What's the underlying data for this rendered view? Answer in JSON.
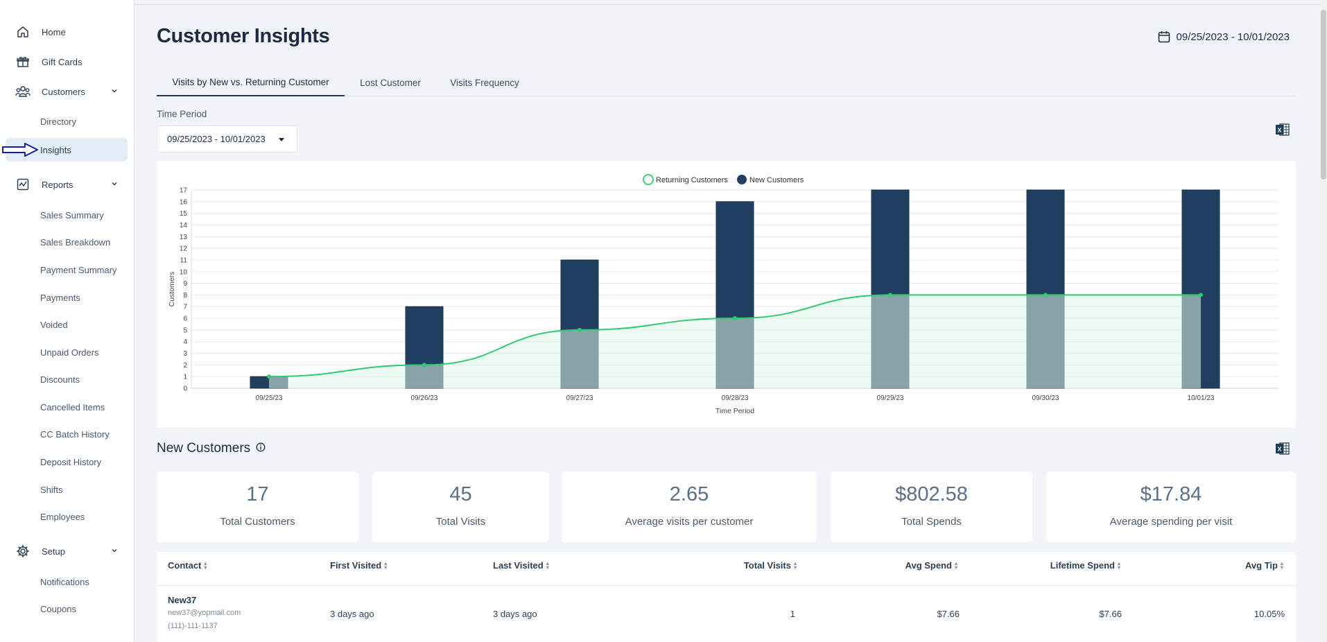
{
  "sidebar": {
    "items": [
      {
        "label": "Home",
        "icon": "home-icon"
      },
      {
        "label": "Gift Cards",
        "icon": "gift-icon"
      },
      {
        "label": "Customers",
        "icon": "users-icon"
      },
      {
        "label": "Directory"
      },
      {
        "label": "Insights"
      },
      {
        "label": "Reports",
        "icon": "chart-icon"
      },
      {
        "label": "Sales Summary"
      },
      {
        "label": "Sales Breakdown"
      },
      {
        "label": "Payment Summary"
      },
      {
        "label": "Payments"
      },
      {
        "label": "Voided"
      },
      {
        "label": "Unpaid Orders"
      },
      {
        "label": "Discounts"
      },
      {
        "label": "Cancelled Items"
      },
      {
        "label": "CC Batch History"
      },
      {
        "label": "Deposit History"
      },
      {
        "label": "Shifts"
      },
      {
        "label": "Employees"
      },
      {
        "label": "Setup",
        "icon": "gear-icon"
      },
      {
        "label": "Notifications"
      },
      {
        "label": "Coupons"
      }
    ]
  },
  "header": {
    "title": "Customer Insights",
    "date_range": "09/25/2023 - 10/01/2023"
  },
  "tabs": [
    {
      "label": "Visits by New vs. Returning Customer",
      "active": true
    },
    {
      "label": "Lost Customer",
      "active": false
    },
    {
      "label": "Visits Frequency",
      "active": false
    }
  ],
  "time_period": {
    "label": "Time Period",
    "value": "09/25/2023 - 10/01/2023"
  },
  "colors": {
    "new_customers": "#213f60",
    "returning_customers": "#2ecc71",
    "returning_fill": "#dff5e6"
  },
  "chart_data": {
    "type": "bar",
    "categories": [
      "09/25/23",
      "09/26/23",
      "09/27/23",
      "09/28/23",
      "09/29/23",
      "09/30/23",
      "10/01/23"
    ],
    "series": [
      {
        "name": "New Customers",
        "type": "bar",
        "values": [
          1,
          7,
          11,
          16,
          17,
          17,
          17
        ]
      },
      {
        "name": "Returning Customers",
        "type": "area",
        "values": [
          1,
          2,
          5,
          6,
          8,
          8,
          8
        ]
      }
    ],
    "legend": [
      "Returning Customers",
      "New Customers"
    ],
    "legend_position": "top-center",
    "xlabel": "Time Period",
    "ylabel": "Customers",
    "ylim": [
      0,
      17
    ],
    "yticks": [
      "0",
      "1",
      "2",
      "3",
      "4",
      "5",
      "6",
      "7",
      "8",
      "9",
      "10",
      "11",
      "12",
      "13",
      "14",
      "15",
      "16",
      "17"
    ],
    "grid": true
  },
  "new_customers": {
    "title": "New Customers",
    "stats": [
      {
        "value": "17",
        "label": "Total Customers"
      },
      {
        "value": "45",
        "label": "Total Visits"
      },
      {
        "value": "2.65",
        "label": "Average visits per customer"
      },
      {
        "value": "$802.58",
        "label": "Total Spends"
      },
      {
        "value": "$17.84",
        "label": "Average spending per visit"
      }
    ]
  },
  "table": {
    "columns": [
      "Contact",
      "First Visited",
      "Last Visited",
      "Total Visits",
      "Avg Spend",
      "Lifetime Spend",
      "Avg Tip"
    ],
    "rows": [
      {
        "name": "New37",
        "email": "new37@yopmail.com",
        "phone": "(111)-111-1137",
        "first_visited": "3 days ago",
        "last_visited": "3 days ago",
        "total_visits": "1",
        "avg_spend": "$7.66",
        "lifetime_spend": "$7.66",
        "avg_tip": "10.05%"
      }
    ]
  }
}
